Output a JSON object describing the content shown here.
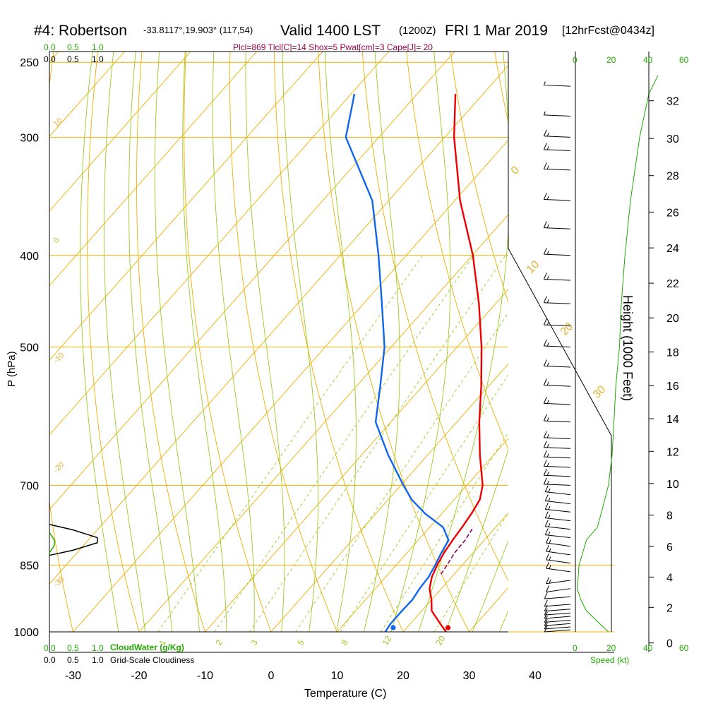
{
  "title": {
    "station": "#4: Robertson",
    "coords": "-33.8117°,19.903° (117,54)",
    "valid": "Valid 1400 LST",
    "utc": "(1200Z)",
    "date": "FRI 1 Mar 2019",
    "forecast": "[12hrFcst@0434z]"
  },
  "indices": "Plcl=869 Tlcl[C]=14 Shox=5 Pwat[cm]=3 Cape[J]= 20",
  "cloud_scale": {
    "top_green": [
      "0.0",
      "0.5",
      "1.0"
    ],
    "top_black": [
      "0.0",
      "0.5",
      "1.0"
    ],
    "bottom_green": [
      "0.0",
      "0.5",
      "1.0"
    ],
    "bottom_black": [
      "0.0",
      "0.5",
      "1.0"
    ],
    "cloudwater_label": "CloudWater (g/Kg)",
    "cloudiness_label": "Grid-Scale Cloudiness"
  },
  "speed_scale": {
    "top_left": [
      "0",
      "20",
      "40"
    ],
    "top_right": [
      "20",
      "40",
      "60"
    ],
    "bottom_left": [
      "0",
      "20",
      "40"
    ],
    "bottom_right": [
      "20",
      "40",
      "60"
    ],
    "label": "Speed (kt)"
  },
  "colors": {
    "temperature": "#ee0000",
    "dewpoint": "#1166ee",
    "isotherm": "#eeb000",
    "dry_adiabat": "#eeb000",
    "moist_adiabat": "#99cc22",
    "mixing_ratio": "#99cc22",
    "cloud": "#22aa00"
  },
  "chart_data": {
    "type": "line",
    "subtype": "skew-T log-P sounding",
    "xlabel": "Temperature (C)",
    "ylabel": "P (hPa)",
    "y2label": "Height (1000 Feet)",
    "x_ticks": [
      -30,
      -20,
      -10,
      0,
      10,
      20,
      30,
      40
    ],
    "y_ticks": [
      250,
      300,
      400,
      500,
      700,
      850,
      1000
    ],
    "y2_ticks": [
      0,
      2,
      4,
      6,
      8,
      10,
      12,
      14,
      16,
      18,
      20,
      22,
      24,
      26,
      28,
      30,
      32
    ],
    "y_scale": "log",
    "pressure_levels": [
      1000,
      850,
      700,
      500,
      400,
      300,
      250
    ],
    "isotherm_labels": [
      "10",
      "0",
      "-10",
      "-20",
      "-30",
      "0",
      "10",
      "20",
      "30"
    ],
    "mixing_ratio_labels": [
      "1",
      "2",
      "3",
      "5",
      "8",
      "12",
      "20"
    ],
    "series": [
      {
        "name": "Temperature",
        "points": [
          [
            1000,
            26.5
          ],
          [
            975,
            24.0
          ],
          [
            950,
            21.5
          ],
          [
            925,
            20.0
          ],
          [
            900,
            18.2
          ],
          [
            875,
            17.0
          ],
          [
            850,
            16.2
          ],
          [
            825,
            15.6
          ],
          [
            800,
            15.2
          ],
          [
            775,
            14.9
          ],
          [
            750,
            14.5
          ],
          [
            725,
            13.9
          ],
          [
            700,
            12.4
          ],
          [
            650,
            7.9
          ],
          [
            600,
            3.4
          ],
          [
            550,
            -1.1
          ],
          [
            500,
            -6.3
          ],
          [
            450,
            -12.5
          ],
          [
            400,
            -19.9
          ],
          [
            350,
            -29.2
          ],
          [
            300,
            -38.6
          ],
          [
            270,
            -44.2
          ]
        ]
      },
      {
        "name": "Dewpoint",
        "points": [
          [
            1000,
            17.3
          ],
          [
            980,
            17.0
          ],
          [
            950,
            17.0
          ],
          [
            925,
            17.1
          ],
          [
            900,
            16.7
          ],
          [
            875,
            16.5
          ],
          [
            850,
            15.9
          ],
          [
            825,
            15.2
          ],
          [
            800,
            14.6
          ],
          [
            775,
            12.0
          ],
          [
            750,
            7.5
          ],
          [
            725,
            3.6
          ],
          [
            700,
            0.4
          ],
          [
            650,
            -6.0
          ],
          [
            600,
            -12.3
          ],
          [
            550,
            -16.4
          ],
          [
            500,
            -21.0
          ],
          [
            450,
            -27.2
          ],
          [
            400,
            -34.2
          ],
          [
            350,
            -42.5
          ],
          [
            300,
            -55.0
          ],
          [
            270,
            -59.5
          ]
        ]
      },
      {
        "name": "Parcel",
        "points": [
          [
            869,
            18.0
          ],
          [
            850,
            17.7
          ],
          [
            825,
            17.2
          ],
          [
            800,
            17.1
          ],
          [
            775,
            16.6
          ]
        ]
      }
    ],
    "surface_points": [
      {
        "name": "Temperature",
        "p": 1000,
        "t": 26.8
      },
      {
        "name": "Dewpoint",
        "p": 1000,
        "t": 18.5
      }
    ],
    "wind_barbs": [
      {
        "p": 995,
        "spd": 10
      },
      {
        "p": 988,
        "spd": 10
      },
      {
        "p": 980,
        "spd": 10
      },
      {
        "p": 972,
        "spd": 10
      },
      {
        "p": 963,
        "spd": 10
      },
      {
        "p": 955,
        "spd": 10
      },
      {
        "p": 946,
        "spd": 10
      },
      {
        "p": 935,
        "spd": 10
      },
      {
        "p": 918,
        "spd": 10
      },
      {
        "p": 900,
        "spd": 10
      },
      {
        "p": 882,
        "spd": 15
      },
      {
        "p": 864,
        "spd": 15
      },
      {
        "p": 846,
        "spd": 15
      },
      {
        "p": 829,
        "spd": 15
      },
      {
        "p": 812,
        "spd": 15
      },
      {
        "p": 795,
        "spd": 15
      },
      {
        "p": 779,
        "spd": 15
      },
      {
        "p": 763,
        "spd": 15
      },
      {
        "p": 747,
        "spd": 15
      },
      {
        "p": 732,
        "spd": 15
      },
      {
        "p": 716,
        "spd": 15
      },
      {
        "p": 700,
        "spd": 15
      },
      {
        "p": 685,
        "spd": 15
      },
      {
        "p": 670,
        "spd": 15
      },
      {
        "p": 655,
        "spd": 15
      },
      {
        "p": 640,
        "spd": 15
      },
      {
        "p": 625,
        "spd": 15
      },
      {
        "p": 600,
        "spd": 15
      },
      {
        "p": 575,
        "spd": 15
      },
      {
        "p": 550,
        "spd": 15
      },
      {
        "p": 525,
        "spd": 15
      },
      {
        "p": 500,
        "spd": 15
      },
      {
        "p": 475,
        "spd": 15
      },
      {
        "p": 450,
        "spd": 15
      },
      {
        "p": 425,
        "spd": 15
      },
      {
        "p": 400,
        "spd": 15
      },
      {
        "p": 375,
        "spd": 15
      },
      {
        "p": 350,
        "spd": 15
      },
      {
        "p": 325,
        "spd": 15
      },
      {
        "p": 310,
        "spd": 15
      },
      {
        "p": 300,
        "spd": 15
      },
      {
        "p": 285,
        "spd": 5
      },
      {
        "p": 265,
        "spd": 5
      }
    ],
    "wind_speed_profile": [
      [
        1000,
        18
      ],
      [
        975,
        12
      ],
      [
        950,
        6
      ],
      [
        925,
        3
      ],
      [
        900,
        1
      ],
      [
        850,
        2
      ],
      [
        800,
        6
      ],
      [
        775,
        12
      ],
      [
        750,
        14
      ],
      [
        700,
        18
      ],
      [
        650,
        20
      ],
      [
        600,
        21
      ],
      [
        550,
        22
      ],
      [
        500,
        24
      ],
      [
        450,
        25
      ],
      [
        400,
        27
      ],
      [
        350,
        30
      ],
      [
        300,
        35
      ],
      [
        270,
        40
      ],
      [
        258,
        45
      ]
    ],
    "cloud_profile": [
      [
        830,
        0.0
      ],
      [
        820,
        0.45
      ],
      [
        805,
        0.93
      ],
      [
        795,
        0.93
      ],
      [
        780,
        0.45
      ],
      [
        770,
        0.0
      ]
    ],
    "cloudwater_profile": [
      [
        825,
        0.0
      ],
      [
        810,
        0.05
      ],
      [
        800,
        0.05
      ],
      [
        785,
        0.0
      ]
    ]
  }
}
